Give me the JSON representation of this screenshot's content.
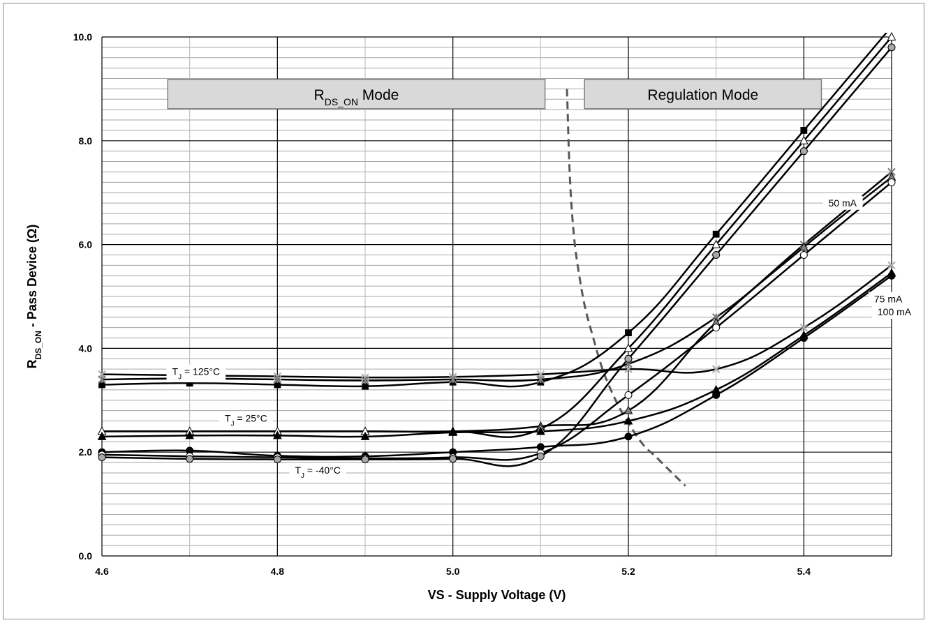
{
  "chart_data": {
    "type": "line",
    "xlabel": "VS  - Supply Voltage (V)",
    "ylabel_main": "R",
    "ylabel_sub": "DS_ON",
    "ylabel_rest": " - Pass Device (Ω)",
    "xlim": [
      4.6,
      5.5
    ],
    "ylim": [
      0,
      10
    ],
    "grid": true,
    "x_major_ticks": [
      {
        "v": 4.6,
        "label": "4.6"
      },
      {
        "v": 4.8,
        "label": "4.8"
      },
      {
        "v": 5.0,
        "label": "5.0"
      },
      {
        "v": 5.2,
        "label": "5.2"
      },
      {
        "v": 5.4,
        "label": "5.4"
      }
    ],
    "y_major_ticks": [
      {
        "v": 0,
        "label": "0.0"
      },
      {
        "v": 2,
        "label": "2.0"
      },
      {
        "v": 4,
        "label": "4.0"
      },
      {
        "v": 6,
        "label": "6.0"
      },
      {
        "v": 8,
        "label": "8.0"
      },
      {
        "v": 10,
        "label": "10.0"
      }
    ],
    "x": [
      4.6,
      4.7,
      4.8,
      4.9,
      5.0,
      5.1,
      5.2,
      5.3,
      5.4,
      5.5
    ],
    "series": [
      {
        "marker": "cross",
        "fill": "#b0b0b0",
        "values": [
          3.5,
          3.48,
          3.46,
          3.44,
          3.45,
          3.5,
          3.6,
          3.6,
          4.4,
          5.6
        ]
      },
      {
        "marker": "square",
        "fill": "#000000",
        "values": [
          3.3,
          3.33,
          3.3,
          3.27,
          3.35,
          3.35,
          4.3,
          6.2,
          8.2,
          10.2
        ]
      },
      {
        "marker": "xstar",
        "fill": "#808080",
        "values": [
          3.4,
          3.42,
          3.4,
          3.38,
          3.4,
          3.4,
          3.7,
          4.6,
          6.0,
          7.4
        ]
      },
      {
        "marker": "triangle",
        "fill": "#808080",
        "values": [
          2.4,
          2.4,
          2.4,
          2.4,
          2.4,
          2.5,
          2.8,
          4.5,
          5.95,
          7.3
        ]
      },
      {
        "marker": "triangle",
        "fill": "#ffffff",
        "values": [
          2.4,
          2.4,
          2.4,
          2.4,
          2.4,
          2.45,
          4.0,
          6.0,
          8.0,
          10.0
        ]
      },
      {
        "marker": "triangle",
        "fill": "#000000",
        "values": [
          2.3,
          2.32,
          2.32,
          2.3,
          2.38,
          2.4,
          2.6,
          3.2,
          4.25,
          5.45
        ]
      },
      {
        "marker": "circle",
        "fill": "#000000",
        "values": [
          2.0,
          2.03,
          1.93,
          1.92,
          2.0,
          2.1,
          2.3,
          3.1,
          4.2,
          5.4
        ]
      },
      {
        "marker": "circle",
        "fill": "#ffffff",
        "values": [
          1.95,
          1.92,
          1.9,
          1.88,
          1.9,
          1.98,
          3.1,
          4.4,
          5.8,
          7.2
        ]
      },
      {
        "marker": "circle",
        "fill": "#a8a8a8",
        "values": [
          1.9,
          1.87,
          1.86,
          1.86,
          1.87,
          1.92,
          3.8,
          5.8,
          7.8,
          9.8
        ]
      }
    ],
    "boundary_x": [
      5.13,
      5.135,
      5.145,
      5.16,
      5.18,
      5.21,
      5.235,
      5.265
    ],
    "boundary_y": [
      9.0,
      6.8,
      5.3,
      4.2,
      3.2,
      2.3,
      1.85,
      1.35
    ],
    "mode_labels": [
      {
        "main": "R",
        "sub": "DS_ON",
        "rest": " Mode",
        "x0": 4.675,
        "x1": 5.105,
        "y": 8.9
      },
      {
        "main": "Regulation Mode",
        "sub": "",
        "rest": "",
        "x0": 5.15,
        "x1": 5.42,
        "y": 8.9
      }
    ],
    "annotations": [
      {
        "main": "T",
        "sub": "J",
        "rest": " = 125°C",
        "x": 4.68,
        "y": 3.5
      },
      {
        "main": "T",
        "sub": "J",
        "rest": " = 25°C",
        "x": 4.74,
        "y": 2.6
      },
      {
        "main": "T",
        "sub": "J",
        "rest": " = -40°C",
        "x": 4.82,
        "y": 1.6
      },
      {
        "main": "50 mA",
        "sub": "",
        "rest": "",
        "x": 5.428,
        "y": 6.75
      },
      {
        "main": "75 mA",
        "sub": "",
        "rest": "",
        "x": 5.48,
        "y": 4.9
      },
      {
        "main": "100 mA",
        "sub": "",
        "rest": "",
        "x": 5.484,
        "y": 4.65
      }
    ]
  }
}
